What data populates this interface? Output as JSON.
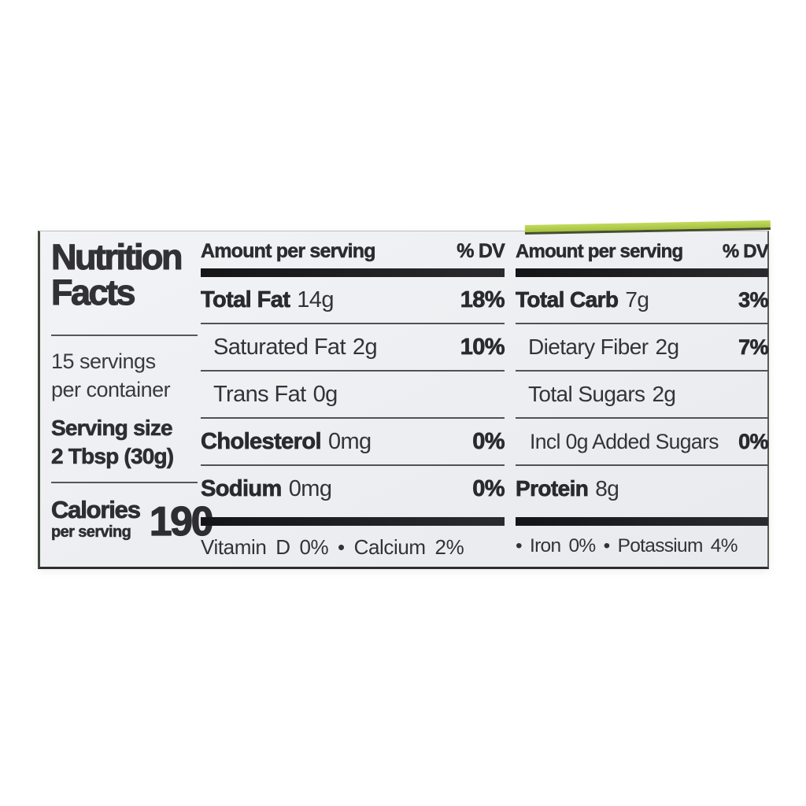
{
  "label": {
    "accent_green": "#a9c845",
    "background": "#edeff2",
    "title_line1": "Nutrition",
    "title_line2": "Facts",
    "servings_line1": "15 servings",
    "servings_line2": "per container",
    "serving_size_label": "Serving size",
    "serving_size_value": "2 Tbsp (30g)",
    "calories_label": "Calories",
    "calories_sublabel": "per serving",
    "calories_value": "190",
    "columns": [
      {
        "header_left": "Amount per serving",
        "header_right": "% DV",
        "rows": [
          {
            "name": "Total Fat",
            "amount": "14g",
            "dv": "18%"
          },
          {
            "name": "Saturated Fat",
            "amount": "2g",
            "dv": "10%"
          },
          {
            "name": "Trans Fat",
            "amount": "0g",
            "dv": ""
          },
          {
            "name": "Cholesterol",
            "amount": "0mg",
            "dv": "0%"
          },
          {
            "name": "Sodium",
            "amount": "0mg",
            "dv": "0%"
          }
        ],
        "footer": "Vitamin D 0% • Calcium 2%"
      },
      {
        "header_left": "Amount per serving",
        "header_right": "% DV",
        "rows": [
          {
            "name": "Total Carb",
            "amount": "7g",
            "dv": "3%"
          },
          {
            "name": "Dietary Fiber",
            "amount": "2g",
            "dv": "7%"
          },
          {
            "name": "Total Sugars",
            "amount": "2g",
            "dv": ""
          },
          {
            "name": "Incl 0g Added Sugars",
            "amount": "",
            "dv": "0%"
          },
          {
            "name": "Protein",
            "amount": "8g",
            "dv": ""
          }
        ],
        "footer": "• Iron 0% • Potassium 4%"
      }
    ]
  }
}
